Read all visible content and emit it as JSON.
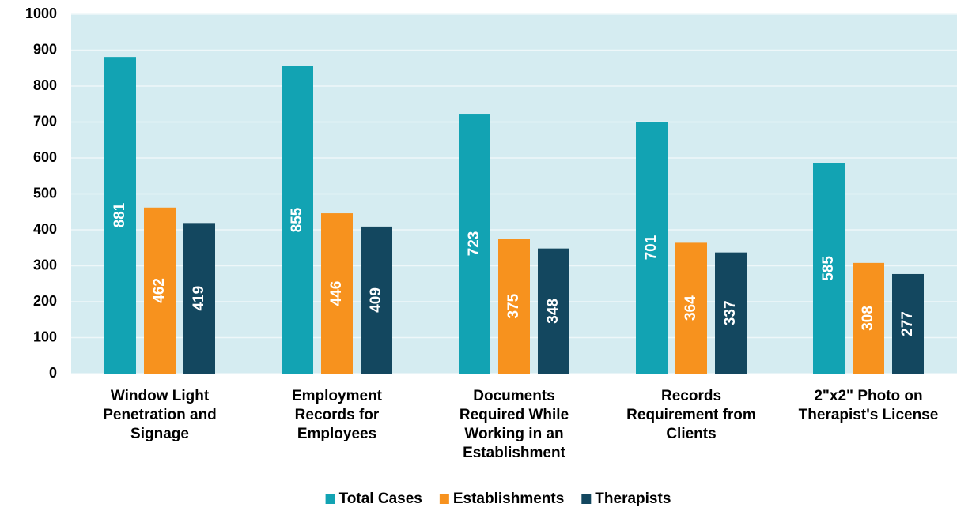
{
  "chart_data": {
    "type": "bar",
    "categories": [
      "Window Light Penetration and Signage",
      "Employment Records for Employees",
      "Documents Required While Working in an Establishment",
      "Records Requirement from Clients",
      "2\"x2\" Photo on Therapist's License"
    ],
    "series": [
      {
        "name": "Total Cases",
        "color": "#12a3b3",
        "values": [
          881,
          855,
          723,
          701,
          585
        ]
      },
      {
        "name": "Establishments",
        "color": "#f7921e",
        "values": [
          462,
          446,
          375,
          364,
          308
        ]
      },
      {
        "name": "Therapists",
        "color": "#13475f",
        "values": [
          419,
          409,
          348,
          337,
          277
        ]
      }
    ],
    "ylim": [
      0,
      1000
    ],
    "yticks": [
      0,
      100,
      200,
      300,
      400,
      500,
      600,
      700,
      800,
      900,
      1000
    ],
    "grid": true,
    "legend": "bottom"
  }
}
